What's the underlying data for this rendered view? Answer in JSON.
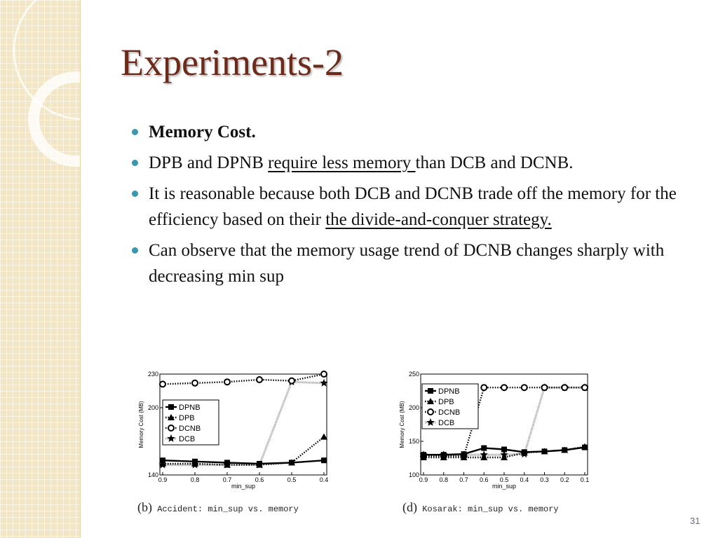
{
  "slide": {
    "title": "Experiments-2",
    "page_number": "31",
    "accent_color": "#6b2a1a",
    "bullet_color": "#3a97ad",
    "bullets": [
      {
        "parts": [
          {
            "text": "Memory Cost.",
            "underline": false
          }
        ],
        "bold": true
      },
      {
        "parts": [
          {
            "text": "DPB and DPNB ",
            "underline": false
          },
          {
            "text": "require less memory ",
            "underline": true
          },
          {
            "text": "than DCB and DCNB.",
            "underline": false
          }
        ],
        "bold": false
      },
      {
        "parts": [
          {
            "text": "It is reasonable because both DCB and DCNB trade off the memory for the efficiency based on their ",
            "underline": false
          },
          {
            "text": "the divide-and-conquer strategy.",
            "underline": true
          }
        ],
        "bold": false
      },
      {
        "parts": [
          {
            "text": "Can observe that the memory usage trend of DCNB changes sharply with decreasing min sup",
            "underline": false
          }
        ],
        "bold": false
      }
    ]
  },
  "captions": {
    "b": {
      "letter": "(b)",
      "text": "Accident: min_sup vs. memory"
    },
    "d": {
      "letter": "(d)",
      "text": "Kosarak: min_sup vs. memory"
    }
  },
  "chart_data": [
    {
      "type": "line",
      "id": "b",
      "xlabel": "min_sup",
      "ylabel": "Memory Cost (MB)",
      "categories": [
        "0.9",
        "0.8",
        "0.7",
        "0.6",
        "0.5",
        "0.4"
      ],
      "yticks": [
        "230",
        "200",
        "140"
      ],
      "ylim": [
        140,
        230
      ],
      "legend_position": "left",
      "grid": false,
      "series": [
        {
          "name": "DPNB",
          "marker": "square",
          "style": "solid",
          "values": [
            153,
            152,
            151,
            150,
            151,
            153
          ]
        },
        {
          "name": "DPB",
          "marker": "triangle",
          "style": "dotted",
          "values": [
            150,
            150,
            149,
            149,
            151,
            174
          ]
        },
        {
          "name": "DCNB",
          "marker": "circle",
          "style": "dotted",
          "values": [
            221,
            222,
            223,
            225,
            224,
            230
          ]
        },
        {
          "name": "DCB",
          "marker": "star",
          "style": "hatched",
          "values": [
            149,
            149,
            149,
            149,
            223,
            222
          ]
        }
      ]
    },
    {
      "type": "line",
      "id": "d",
      "xlabel": "min_sup",
      "ylabel": "Memory Cost (MB)",
      "categories": [
        "0.9",
        "0.8",
        "0.7",
        "0.6",
        "0.5",
        "0.4",
        "0.3",
        "0.2",
        "0.1"
      ],
      "yticks": [
        "250",
        "200",
        "150",
        "100"
      ],
      "ylim": [
        100,
        250
      ],
      "legend_position": "top-left",
      "grid": false,
      "series": [
        {
          "name": "DPNB",
          "marker": "square",
          "style": "solid",
          "values": [
            130,
            130,
            131,
            140,
            138,
            134,
            135,
            137,
            141
          ]
        },
        {
          "name": "DPB",
          "marker": "triangle",
          "style": "dotted",
          "values": [
            126,
            126,
            126,
            126,
            126,
            133,
            135,
            137,
            142
          ]
        },
        {
          "name": "DCNB",
          "marker": "circle",
          "style": "dotted",
          "values": [
            128,
            128,
            128,
            230,
            230,
            230,
            230,
            230,
            230
          ]
        },
        {
          "name": "DCB",
          "marker": "star",
          "style": "hatched",
          "values": [
            130,
            130,
            130,
            130,
            130,
            131,
            230,
            230,
            230
          ]
        }
      ]
    }
  ]
}
